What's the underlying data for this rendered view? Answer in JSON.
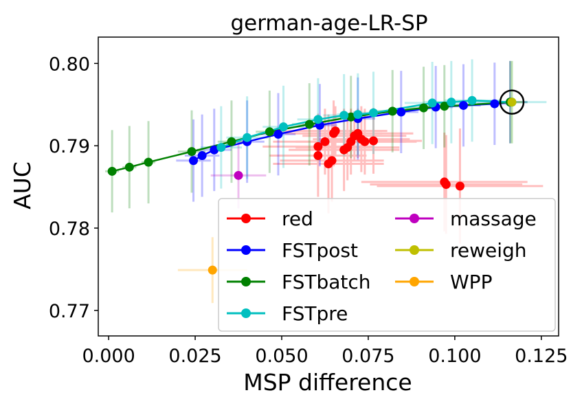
{
  "chart_data": {
    "type": "scatter",
    "title": "german-age-LR-SP",
    "xlabel": "MSP difference",
    "ylabel": "AUC",
    "xlim": [
      -0.003,
      0.13
    ],
    "ylim": [
      0.7669,
      0.8032
    ],
    "xticks": [
      0.0,
      0.025,
      0.05,
      0.075,
      0.1,
      0.125
    ],
    "xtick_labels": [
      "0.000",
      "0.025",
      "0.050",
      "0.075",
      "0.100",
      "0.125"
    ],
    "yticks": [
      0.77,
      0.78,
      0.79,
      0.8
    ],
    "ytick_labels": [
      "0.77",
      "0.78",
      "0.79",
      "0.80"
    ],
    "legend_position": "lower-right",
    "legend_columns": 2,
    "highlight_point": {
      "x": 0.1165,
      "y": 0.7953
    },
    "series": [
      {
        "name": "red",
        "color": "#ff0000",
        "connect": false,
        "points": [
          {
            "x": 0.0605,
            "y": 0.7899,
            "xerr": 0.016,
            "yerr": 0.004
          },
          {
            "x": 0.0605,
            "y": 0.7888,
            "xerr": 0.014,
            "yerr": 0.005
          },
          {
            "x": 0.0625,
            "y": 0.7905,
            "xerr": 0.015,
            "yerr": 0.004
          },
          {
            "x": 0.0635,
            "y": 0.7878,
            "xerr": 0.016,
            "yerr": 0.006
          },
          {
            "x": 0.0645,
            "y": 0.7882,
            "xerr": 0.015,
            "yerr": 0.005
          },
          {
            "x": 0.065,
            "y": 0.7915,
            "xerr": 0.014,
            "yerr": 0.004
          },
          {
            "x": 0.0655,
            "y": 0.7918,
            "xerr": 0.015,
            "yerr": 0.003
          },
          {
            "x": 0.068,
            "y": 0.7895,
            "xerr": 0.016,
            "yerr": 0.005
          },
          {
            "x": 0.069,
            "y": 0.7898,
            "xerr": 0.015,
            "yerr": 0.004
          },
          {
            "x": 0.07,
            "y": 0.7905,
            "xerr": 0.016,
            "yerr": 0.004
          },
          {
            "x": 0.071,
            "y": 0.7912,
            "xerr": 0.015,
            "yerr": 0.003
          },
          {
            "x": 0.072,
            "y": 0.7915,
            "xerr": 0.016,
            "yerr": 0.003
          },
          {
            "x": 0.073,
            "y": 0.7908,
            "xerr": 0.014,
            "yerr": 0.004
          },
          {
            "x": 0.074,
            "y": 0.7905,
            "xerr": 0.015,
            "yerr": 0.004
          },
          {
            "x": 0.0765,
            "y": 0.7906,
            "xerr": 0.014,
            "yerr": 0.004
          },
          {
            "x": 0.097,
            "y": 0.7856,
            "xerr": 0.024,
            "yerr": 0.006
          },
          {
            "x": 0.0975,
            "y": 0.7853,
            "xerr": 0.022,
            "yerr": 0.006
          },
          {
            "x": 0.1015,
            "y": 0.7851,
            "xerr": 0.024,
            "yerr": 0.007
          }
        ]
      },
      {
        "name": "FSTpost",
        "color": "#0000ff",
        "connect": true,
        "points": [
          {
            "x": 0.0245,
            "y": 0.7882,
            "xerr": 0.005,
            "yerr": 0.005
          },
          {
            "x": 0.027,
            "y": 0.7888,
            "xerr": 0.005,
            "yerr": 0.005
          },
          {
            "x": 0.0305,
            "y": 0.7895,
            "xerr": 0.005,
            "yerr": 0.005
          },
          {
            "x": 0.04,
            "y": 0.7905,
            "xerr": 0.005,
            "yerr": 0.005
          },
          {
            "x": 0.049,
            "y": 0.7914,
            "xerr": 0.005,
            "yerr": 0.005
          },
          {
            "x": 0.061,
            "y": 0.7925,
            "xerr": 0.005,
            "yerr": 0.005
          },
          {
            "x": 0.072,
            "y": 0.7933,
            "xerr": 0.005,
            "yerr": 0.005
          },
          {
            "x": 0.0845,
            "y": 0.7941,
            "xerr": 0.005,
            "yerr": 0.005
          },
          {
            "x": 0.0945,
            "y": 0.7947,
            "xerr": 0.005,
            "yerr": 0.005
          },
          {
            "x": 0.1025,
            "y": 0.7949,
            "xerr": 0.005,
            "yerr": 0.005
          },
          {
            "x": 0.1115,
            "y": 0.7951,
            "xerr": 0.005,
            "yerr": 0.005
          },
          {
            "x": 0.116,
            "y": 0.7953,
            "xerr": 0.005,
            "yerr": 0.005
          }
        ]
      },
      {
        "name": "FSTbatch",
        "color": "#008000",
        "connect": true,
        "points": [
          {
            "x": 0.001,
            "y": 0.7869,
            "xerr": 0.002,
            "yerr": 0.005
          },
          {
            "x": 0.006,
            "y": 0.7874,
            "xerr": 0.002,
            "yerr": 0.005
          },
          {
            "x": 0.0115,
            "y": 0.788,
            "xerr": 0.002,
            "yerr": 0.005
          },
          {
            "x": 0.024,
            "y": 0.7893,
            "xerr": 0.004,
            "yerr": 0.005
          },
          {
            "x": 0.0355,
            "y": 0.7905,
            "xerr": 0.004,
            "yerr": 0.005
          },
          {
            "x": 0.0465,
            "y": 0.7917,
            "xerr": 0.004,
            "yerr": 0.005
          },
          {
            "x": 0.058,
            "y": 0.7926,
            "xerr": 0.005,
            "yerr": 0.005
          },
          {
            "x": 0.07,
            "y": 0.7935,
            "xerr": 0.005,
            "yerr": 0.005
          },
          {
            "x": 0.082,
            "y": 0.7942,
            "xerr": 0.005,
            "yerr": 0.005
          },
          {
            "x": 0.091,
            "y": 0.7946,
            "xerr": 0.005,
            "yerr": 0.005
          },
          {
            "x": 0.097,
            "y": 0.7948,
            "xerr": 0.005,
            "yerr": 0.005
          },
          {
            "x": 0.116,
            "y": 0.7953,
            "xerr": 0.005,
            "yerr": 0.005
          }
        ]
      },
      {
        "name": "FSTpre",
        "color": "#00bfbf",
        "connect": true,
        "points": [
          {
            "x": 0.0325,
            "y": 0.7898,
            "xerr": 0.006,
            "yerr": 0.005
          },
          {
            "x": 0.04,
            "y": 0.791,
            "xerr": 0.006,
            "yerr": 0.005
          },
          {
            "x": 0.0505,
            "y": 0.7923,
            "xerr": 0.006,
            "yerr": 0.005
          },
          {
            "x": 0.0605,
            "y": 0.7932,
            "xerr": 0.006,
            "yerr": 0.005
          },
          {
            "x": 0.068,
            "y": 0.7937,
            "xerr": 0.006,
            "yerr": 0.005
          },
          {
            "x": 0.072,
            "y": 0.7938,
            "xerr": 0.006,
            "yerr": 0.005
          },
          {
            "x": 0.0765,
            "y": 0.794,
            "xerr": 0.006,
            "yerr": 0.005
          },
          {
            "x": 0.0935,
            "y": 0.7952,
            "xerr": 0.008,
            "yerr": 0.005
          },
          {
            "x": 0.099,
            "y": 0.7953,
            "xerr": 0.008,
            "yerr": 0.005
          },
          {
            "x": 0.105,
            "y": 0.7955,
            "xerr": 0.008,
            "yerr": 0.005
          },
          {
            "x": 0.1165,
            "y": 0.7953,
            "xerr": 0.01,
            "yerr": 0.005
          }
        ]
      },
      {
        "name": "massage",
        "color": "#bf00bf",
        "connect": false,
        "points": [
          {
            "x": 0.0375,
            "y": 0.7864,
            "xerr": 0.008,
            "yerr": 0.004
          }
        ]
      },
      {
        "name": "reweigh",
        "color": "#bfbf00",
        "connect": false,
        "points": [
          {
            "x": 0.1165,
            "y": 0.7953,
            "xerr": 0.003,
            "yerr": 0.005
          }
        ]
      },
      {
        "name": "WPP",
        "color": "#ffa500",
        "connect": false,
        "points": [
          {
            "x": 0.03,
            "y": 0.7749,
            "xerr": 0.01,
            "yerr": 0.004
          }
        ]
      }
    ]
  }
}
